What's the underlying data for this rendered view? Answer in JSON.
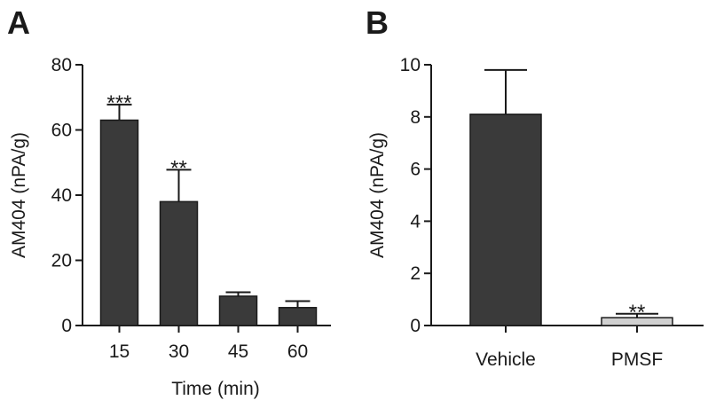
{
  "chart_data": [
    {
      "panel": "A",
      "type": "bar",
      "categories": [
        "15",
        "30",
        "45",
        "60"
      ],
      "values": [
        63,
        38,
        9,
        5.5
      ],
      "errors": [
        4.8,
        9.8,
        1.2,
        2.0
      ],
      "significance": [
        "***",
        "**",
        "",
        ""
      ],
      "bar_colors": [
        "#3a3a3a",
        "#3a3a3a",
        "#3a3a3a",
        "#3a3a3a"
      ],
      "xlabel": "Time (min)",
      "ylabel": "AM404 (nPA/g)",
      "ylim": [
        0,
        80
      ],
      "yticks": [
        "0",
        "20",
        "40",
        "60",
        "80"
      ],
      "grid": false
    },
    {
      "panel": "B",
      "type": "bar",
      "categories": [
        "Vehicle",
        "PMSF"
      ],
      "values": [
        8.1,
        0.3
      ],
      "errors": [
        1.7,
        0.15
      ],
      "significance": [
        "",
        "**"
      ],
      "bar_colors": [
        "#3a3a3a",
        "#d0d0d0"
      ],
      "xlabel": "",
      "ylabel": "AM404 (nPA/g)",
      "ylim": [
        0,
        10
      ],
      "yticks": [
        "0",
        "2",
        "4",
        "6",
        "8",
        "10"
      ],
      "grid": false
    }
  ]
}
